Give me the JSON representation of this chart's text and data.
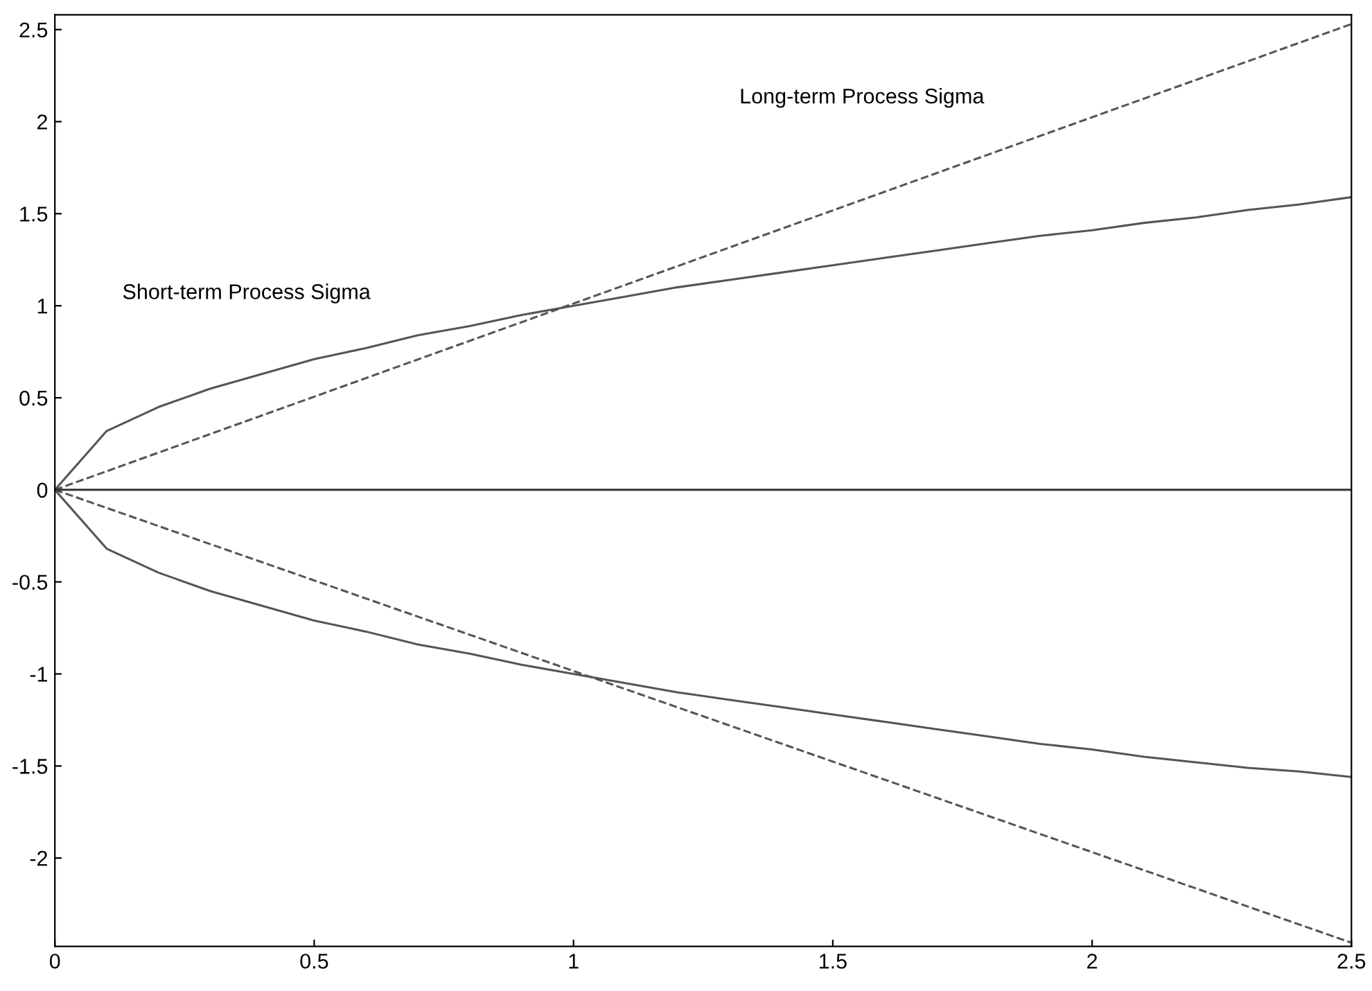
{
  "chart_data": {
    "type": "line",
    "xlim": [
      0,
      2.5
    ],
    "ylim": [
      -2.48,
      2.58
    ],
    "xticks": [
      0,
      0.5,
      1,
      1.5,
      2,
      2.5
    ],
    "yticks": [
      -2,
      -1.5,
      -1,
      -0.5,
      0,
      0.5,
      1,
      1.5,
      2,
      2.5
    ],
    "series": [
      {
        "color": "#555555",
        "line_style": "solid",
        "x": [
          0,
          0.1,
          0.2,
          0.3,
          0.4,
          0.5,
          0.6,
          0.7,
          0.8,
          0.9,
          1.0,
          1.1,
          1.2,
          1.3,
          1.4,
          1.5,
          1.6,
          1.7,
          1.8,
          1.9,
          2.0,
          2.1,
          2.2,
          2.3,
          2.4,
          2.5
        ],
        "values": [
          0,
          0.32,
          0.45,
          0.55,
          0.63,
          0.71,
          0.77,
          0.84,
          0.89,
          0.95,
          1.0,
          1.05,
          1.1,
          1.14,
          1.18,
          1.22,
          1.26,
          1.3,
          1.34,
          1.38,
          1.41,
          1.45,
          1.48,
          1.52,
          1.55,
          1.59
        ]
      },
      {
        "color": "#555555",
        "line_style": "solid",
        "x": [
          0,
          0.1,
          0.2,
          0.3,
          0.4,
          0.5,
          0.6,
          0.7,
          0.8,
          0.9,
          1.0,
          1.1,
          1.2,
          1.3,
          1.4,
          1.5,
          1.6,
          1.7,
          1.8,
          1.9,
          2.0,
          2.1,
          2.2,
          2.3,
          2.4,
          2.5
        ],
        "values": [
          0,
          -0.32,
          -0.45,
          -0.55,
          -0.63,
          -0.71,
          -0.77,
          -0.84,
          -0.89,
          -0.95,
          -1.0,
          -1.05,
          -1.1,
          -1.14,
          -1.18,
          -1.22,
          -1.26,
          -1.3,
          -1.34,
          -1.38,
          -1.41,
          -1.45,
          -1.48,
          -1.51,
          -1.53,
          -1.56
        ]
      },
      {
        "color": "#555555",
        "line_style": "dashed",
        "x": [
          0,
          2.5
        ],
        "values": [
          0,
          2.53
        ]
      },
      {
        "color": "#555555",
        "line_style": "dashed",
        "x": [
          0,
          2.5
        ],
        "values": [
          0,
          -2.46
        ]
      },
      {
        "color": "#333333",
        "line_style": "solid",
        "x": [
          0,
          2.5
        ],
        "values": [
          0,
          0
        ]
      }
    ],
    "annotations": [
      "Long-term Process Sigma",
      "Short-term Process Sigma"
    ],
    "grid": false,
    "legend": false
  }
}
